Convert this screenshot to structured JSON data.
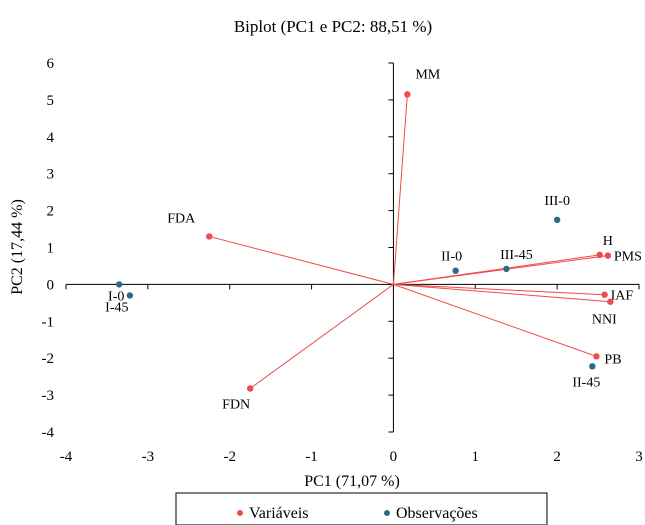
{
  "chart_data": {
    "type": "scatter",
    "title": "Biplot (PC1 e PC2: 88,51 %)",
    "xlabel": "PC1 (71,07 %)",
    "ylabel": "PC2 (17,44 %)",
    "xlim": [
      -4,
      3
    ],
    "ylim": [
      -4,
      6
    ],
    "xticks": [
      -4,
      -3,
      -2,
      -1,
      0,
      1,
      2,
      3
    ],
    "yticks": [
      -4,
      -3,
      -2,
      -1,
      0,
      1,
      2,
      3,
      4,
      5,
      6
    ],
    "grid": false,
    "legend_position": "bottom",
    "series": [
      {
        "name": "Variáveis",
        "color": "#f04a4a",
        "vectors_from_origin": true,
        "points": [
          {
            "label": "MM",
            "x": 0.17,
            "y": 5.15
          },
          {
            "label": "FDA",
            "x": -2.25,
            "y": 1.3
          },
          {
            "label": "FDN",
            "x": -1.75,
            "y": -2.82
          },
          {
            "label": "H",
            "x": 2.52,
            "y": 0.8
          },
          {
            "label": "PMS",
            "x": 2.62,
            "y": 0.78
          },
          {
            "label": "IAF",
            "x": 2.58,
            "y": -0.28
          },
          {
            "label": "NNI",
            "x": 2.65,
            "y": -0.47
          },
          {
            "label": "PB",
            "x": 2.48,
            "y": -1.95
          }
        ]
      },
      {
        "name": "Observações",
        "color": "#2b6a8b",
        "vectors_from_origin": false,
        "points": [
          {
            "label": "I-0",
            "x": -3.35,
            "y": 0.0
          },
          {
            "label": "I-45",
            "x": -3.22,
            "y": -0.3
          },
          {
            "label": "II-0",
            "x": 0.76,
            "y": 0.37
          },
          {
            "label": "III-45",
            "x": 1.38,
            "y": 0.42
          },
          {
            "label": "III-0",
            "x": 2.0,
            "y": 1.75
          },
          {
            "label": "II-45",
            "x": 2.43,
            "y": -2.22
          }
        ]
      }
    ]
  }
}
